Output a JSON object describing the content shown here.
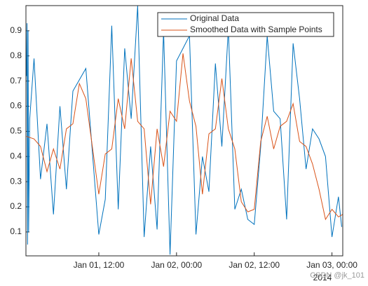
{
  "chart_data": {
    "type": "line",
    "xlim": [
      "2014-01-01T00:45",
      "2014-01-03T01:40"
    ],
    "xticks": [
      {
        "value": "2014-01-01T12:00",
        "label": "Jan 01, 12:00"
      },
      {
        "value": "2014-01-02T00:00",
        "label": "Jan 02, 00:00"
      },
      {
        "value": "2014-01-02T12:00",
        "label": "Jan 02, 12:00"
      },
      {
        "value": "2014-01-03T00:00",
        "label": "Jan 03, 00:00"
      }
    ],
    "x_secondary_label": "2014",
    "ylim": [
      0.005,
      1
    ],
    "yticks": [
      0.1,
      0.2,
      0.3,
      0.4,
      0.5,
      0.6,
      0.7,
      0.8,
      0.9
    ],
    "legend": "northeast",
    "series": [
      {
        "name": "Original Data",
        "color": "#0072bd",
        "x": [
          "2014-01-01T00:50",
          "2014-01-01T00:55",
          "2014-01-01T01:00",
          "2014-01-01T01:05",
          "2014-01-01T01:10",
          "2014-01-01T01:20",
          "2014-01-01T02:00",
          "2014-01-01T03:00",
          "2014-01-01T04:00",
          "2014-01-01T05:00",
          "2014-01-01T06:00",
          "2014-01-01T07:00",
          "2014-01-01T08:00",
          "2014-01-01T10:00",
          "2014-01-01T12:00",
          "2014-01-01T13:00",
          "2014-01-01T14:00",
          "2014-01-01T15:00",
          "2014-01-01T16:00",
          "2014-01-01T17:00",
          "2014-01-01T18:00",
          "2014-01-01T19:00",
          "2014-01-01T20:00",
          "2014-01-01T21:00",
          "2014-01-01T22:00",
          "2014-01-01T23:00",
          "2014-01-02T00:00",
          "2014-01-02T01:00",
          "2014-01-02T02:00",
          "2014-01-02T03:00",
          "2014-01-02T04:00",
          "2014-01-02T05:00",
          "2014-01-02T06:00",
          "2014-01-02T07:00",
          "2014-01-02T08:00",
          "2014-01-02T09:00",
          "2014-01-02T10:00",
          "2014-01-02T11:00",
          "2014-01-02T12:00",
          "2014-01-02T13:00",
          "2014-01-02T14:00",
          "2014-01-02T15:00",
          "2014-01-02T16:00",
          "2014-01-02T17:00",
          "2014-01-02T18:00",
          "2014-01-02T19:00",
          "2014-01-02T20:00",
          "2014-01-02T21:00",
          "2014-01-02T22:00",
          "2014-01-02T23:00",
          "2014-01-03T00:00",
          "2014-01-03T01:00",
          "2014-01-03T01:30"
        ],
        "values": [
          0.72,
          0.93,
          0.05,
          0.9,
          0.1,
          0.55,
          0.79,
          0.31,
          0.53,
          0.17,
          0.6,
          0.27,
          0.66,
          0.75,
          0.09,
          0.23,
          0.92,
          0.19,
          0.83,
          0.55,
          1.0,
          0.08,
          0.44,
          0.11,
          0.9,
          0.01,
          0.78,
          0.83,
          0.88,
          0.09,
          0.4,
          0.26,
          0.77,
          0.44,
          0.91,
          0.19,
          0.27,
          0.15,
          0.13,
          0.44,
          0.88,
          0.58,
          0.55,
          0.15,
          0.85,
          0.63,
          0.35,
          0.51,
          0.47,
          0.4,
          0.08,
          0.24,
          0.12
        ]
      },
      {
        "name": "Smoothed Data with Sample Points",
        "color": "#d95319",
        "x": [
          "2014-01-01T00:50",
          "2014-01-01T02:00",
          "2014-01-01T03:00",
          "2014-01-01T04:00",
          "2014-01-01T05:00",
          "2014-01-01T06:00",
          "2014-01-01T07:00",
          "2014-01-01T08:00",
          "2014-01-01T09:00",
          "2014-01-01T10:00",
          "2014-01-01T12:00",
          "2014-01-01T13:00",
          "2014-01-01T14:00",
          "2014-01-01T15:00",
          "2014-01-01T16:00",
          "2014-01-01T17:00",
          "2014-01-01T18:00",
          "2014-01-01T19:00",
          "2014-01-01T20:00",
          "2014-01-01T21:00",
          "2014-01-01T22:00",
          "2014-01-01T23:00",
          "2014-01-02T00:00",
          "2014-01-02T01:00",
          "2014-01-02T02:00",
          "2014-01-02T03:00",
          "2014-01-02T04:00",
          "2014-01-02T05:00",
          "2014-01-02T06:00",
          "2014-01-02T07:00",
          "2014-01-02T08:00",
          "2014-01-02T09:00",
          "2014-01-02T10:00",
          "2014-01-02T11:00",
          "2014-01-02T12:00",
          "2014-01-02T13:00",
          "2014-01-02T14:00",
          "2014-01-02T15:00",
          "2014-01-02T16:00",
          "2014-01-02T17:00",
          "2014-01-02T18:00",
          "2014-01-02T19:00",
          "2014-01-02T20:00",
          "2014-01-02T21:00",
          "2014-01-02T22:00",
          "2014-01-02T23:00",
          "2014-01-03T00:00",
          "2014-01-03T01:00",
          "2014-01-03T01:40"
        ],
        "values": [
          0.48,
          0.47,
          0.44,
          0.34,
          0.43,
          0.35,
          0.51,
          0.53,
          0.69,
          0.63,
          0.25,
          0.41,
          0.43,
          0.63,
          0.51,
          0.79,
          0.54,
          0.51,
          0.21,
          0.51,
          0.36,
          0.58,
          0.54,
          0.81,
          0.62,
          0.52,
          0.25,
          0.49,
          0.51,
          0.71,
          0.51,
          0.43,
          0.22,
          0.18,
          0.19,
          0.46,
          0.56,
          0.43,
          0.52,
          0.54,
          0.61,
          0.46,
          0.44,
          0.37,
          0.27,
          0.15,
          0.19,
          0.16,
          0.17
        ]
      }
    ],
    "watermark": "CSDN @jk_101"
  }
}
